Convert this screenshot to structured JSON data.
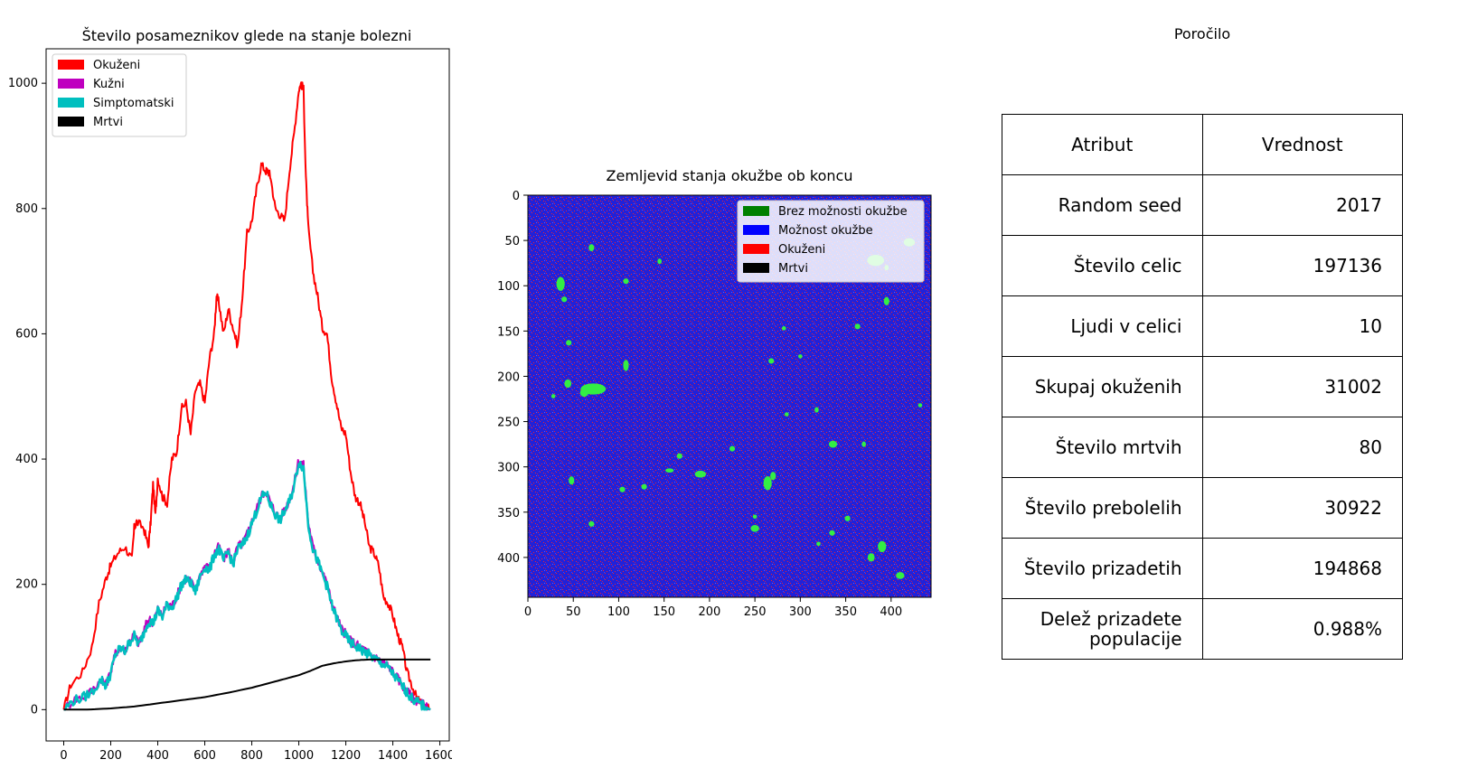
{
  "colors": {
    "infected": "#ff0000",
    "plague": "#bf00bf",
    "symptomatic": "#00bfbf",
    "dead": "#000000",
    "no_infection_possible": "#008000",
    "infection_possible": "#0000ff",
    "map_background": "#2020d8",
    "map_patch": "#33ee44"
  },
  "chart_data": [
    {
      "type": "line",
      "title": "Število posameznikov glede na stanje bolezni",
      "xlabel": "",
      "ylabel": "",
      "xlim": [
        -75,
        1640
      ],
      "ylim": [
        -50,
        1055
      ],
      "xticks": [
        0,
        200,
        400,
        600,
        800,
        1000,
        1200,
        1400,
        1600
      ],
      "yticks": [
        0,
        200,
        400,
        600,
        800,
        1000
      ],
      "legend_position": "top-left",
      "legend": [
        "Okuženi",
        "Kužni",
        "Simptomatski",
        "Mrtvi"
      ],
      "series": [
        {
          "name": "Okuženi",
          "color_key": "infected",
          "x": [
            0,
            30,
            80,
            120,
            150,
            180,
            200,
            230,
            260,
            290,
            300,
            310,
            340,
            360,
            370,
            380,
            390,
            400,
            420,
            440,
            460,
            480,
            500,
            520,
            540,
            560,
            580,
            600,
            620,
            640,
            650,
            660,
            680,
            700,
            720,
            740,
            760,
            780,
            800,
            820,
            840,
            860,
            870,
            880,
            900,
            920,
            940,
            960,
            980,
            1000,
            1010,
            1020,
            1030,
            1040,
            1060,
            1080,
            1100,
            1120,
            1140,
            1160,
            1180,
            1200,
            1220,
            1240,
            1260,
            1280,
            1300,
            1320,
            1340,
            1360,
            1380,
            1400,
            1420,
            1440,
            1460,
            1480,
            1500,
            1520,
            1540,
            1560
          ],
          "y": [
            0,
            40,
            60,
            100,
            170,
            210,
            230,
            250,
            260,
            240,
            290,
            300,
            290,
            260,
            300,
            360,
            310,
            370,
            340,
            330,
            400,
            410,
            480,
            490,
            440,
            510,
            520,
            490,
            560,
            600,
            660,
            650,
            600,
            640,
            610,
            580,
            660,
            760,
            780,
            830,
            870,
            860,
            860,
            850,
            800,
            790,
            780,
            860,
            920,
            990,
            1000,
            990,
            850,
            770,
            700,
            660,
            610,
            600,
            530,
            490,
            450,
            440,
            380,
            340,
            330,
            300,
            260,
            250,
            230,
            180,
            170,
            150,
            120,
            100,
            60,
            40,
            20,
            10,
            5,
            0
          ]
        },
        {
          "name": "Kužni",
          "color_key": "plague",
          "x": [
            0,
            40,
            80,
            120,
            160,
            180,
            200,
            220,
            240,
            260,
            280,
            300,
            320,
            340,
            360,
            380,
            400,
            420,
            440,
            460,
            480,
            500,
            520,
            540,
            560,
            580,
            600,
            620,
            640,
            660,
            680,
            700,
            720,
            740,
            760,
            780,
            800,
            820,
            840,
            860,
            880,
            900,
            920,
            940,
            960,
            980,
            1000,
            1020,
            1040,
            1060,
            1080,
            1100,
            1120,
            1140,
            1160,
            1180,
            1200,
            1220,
            1240,
            1260,
            1280,
            1300,
            1320,
            1340,
            1360,
            1380,
            1400,
            1420,
            1440,
            1460,
            1480,
            1500,
            1520,
            1540,
            1560
          ],
          "y": [
            0,
            15,
            20,
            30,
            50,
            40,
            60,
            90,
            100,
            95,
            110,
            120,
            105,
            125,
            145,
            140,
            160,
            150,
            170,
            165,
            180,
            200,
            210,
            205,
            190,
            215,
            230,
            225,
            250,
            260,
            240,
            255,
            235,
            260,
            265,
            280,
            300,
            320,
            340,
            350,
            330,
            315,
            305,
            320,
            335,
            360,
            400,
            390,
            300,
            260,
            240,
            220,
            200,
            170,
            150,
            130,
            120,
            110,
            105,
            100,
            95,
            90,
            85,
            80,
            75,
            70,
            60,
            50,
            40,
            30,
            20,
            15,
            10,
            5,
            0
          ]
        },
        {
          "name": "Simptomatski",
          "color_key": "symptomatic",
          "x": [
            0,
            40,
            80,
            120,
            160,
            180,
            200,
            220,
            240,
            260,
            280,
            300,
            320,
            340,
            360,
            380,
            400,
            420,
            440,
            460,
            480,
            500,
            520,
            540,
            560,
            580,
            600,
            620,
            640,
            660,
            680,
            700,
            720,
            740,
            760,
            780,
            800,
            820,
            840,
            860,
            880,
            900,
            920,
            940,
            960,
            980,
            1000,
            1020,
            1040,
            1060,
            1080,
            1100,
            1120,
            1140,
            1160,
            1180,
            1200,
            1220,
            1240,
            1260,
            1280,
            1300,
            1320,
            1340,
            1360,
            1380,
            1400,
            1420,
            1440,
            1460,
            1480,
            1500,
            1520,
            1540,
            1560
          ],
          "y": [
            0,
            14,
            19,
            28,
            48,
            38,
            58,
            88,
            98,
            93,
            108,
            118,
            103,
            122,
            142,
            138,
            158,
            148,
            168,
            163,
            178,
            198,
            208,
            202,
            188,
            212,
            228,
            222,
            247,
            257,
            238,
            252,
            232,
            257,
            262,
            277,
            297,
            317,
            337,
            347,
            327,
            312,
            302,
            317,
            332,
            357,
            396,
            386,
            297,
            257,
            237,
            217,
            197,
            167,
            147,
            127,
            117,
            107,
            102,
            97,
            92,
            87,
            82,
            77,
            72,
            67,
            57,
            47,
            38,
            28,
            18,
            13,
            8,
            4,
            0
          ]
        },
        {
          "name": "Mrtvi",
          "color_key": "dead",
          "x": [
            0,
            100,
            200,
            300,
            400,
            500,
            600,
            700,
            800,
            900,
            950,
            1000,
            1050,
            1100,
            1150,
            1200,
            1250,
            1300,
            1350,
            1400,
            1450,
            1500,
            1560
          ],
          "y": [
            0,
            0,
            2,
            5,
            10,
            15,
            20,
            27,
            35,
            45,
            50,
            55,
            62,
            70,
            74,
            77,
            79,
            80,
            80,
            80,
            80,
            80,
            80
          ]
        }
      ]
    },
    {
      "type": "heatmap",
      "title": "Zemljevid stanja okužbe ob koncu",
      "xlabel": "",
      "ylabel": "",
      "xlim": [
        0,
        444
      ],
      "ylim": [
        0,
        444
      ],
      "xticks": [
        0,
        50,
        100,
        150,
        200,
        250,
        300,
        350,
        400
      ],
      "yticks": [
        0,
        50,
        100,
        150,
        200,
        250,
        300,
        350,
        400
      ],
      "legend_position": "top-right",
      "legend": [
        {
          "label": "Brez možnosti okužbe",
          "color_key": "no_infection_possible"
        },
        {
          "label": "Možnost okužbe",
          "color_key": "infection_possible"
        },
        {
          "label": "Okuženi",
          "color_key": "infected"
        },
        {
          "label": "Mrtvi",
          "color_key": "dead"
        }
      ]
    }
  ],
  "report": {
    "title": "Poročilo",
    "headers": [
      "Atribut",
      "Vrednost"
    ],
    "rows": [
      {
        "attribute": "Random seed",
        "value": "2017"
      },
      {
        "attribute": "Število celic",
        "value": "197136"
      },
      {
        "attribute": "Ljudi v celici",
        "value": "10"
      },
      {
        "attribute": "Skupaj okuženih",
        "value": "31002"
      },
      {
        "attribute": "Število mrtvih",
        "value": "80"
      },
      {
        "attribute": "Število prebolelih",
        "value": "30922"
      },
      {
        "attribute": "Število prizadetih",
        "value": "194868"
      },
      {
        "attribute": "Delež prizadete populacije",
        "value": "0.988%"
      }
    ]
  }
}
